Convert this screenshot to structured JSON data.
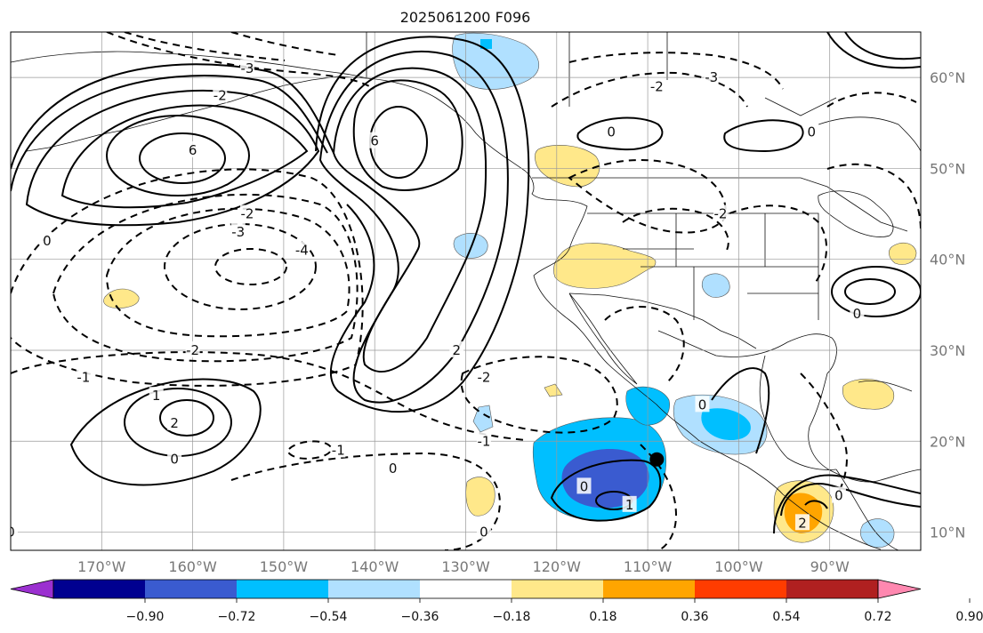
{
  "title": "2025061200 F096",
  "map": {
    "lon_range": [
      -180,
      -80
    ],
    "lat_range": [
      8,
      65
    ],
    "lon_ticks": [
      {
        "value": -170,
        "label": "170°W"
      },
      {
        "value": -160,
        "label": "160°W"
      },
      {
        "value": -150,
        "label": "150°W"
      },
      {
        "value": -140,
        "label": "140°W"
      },
      {
        "value": -130,
        "label": "130°W"
      },
      {
        "value": -120,
        "label": "120°W"
      },
      {
        "value": -110,
        "label": "110°W"
      },
      {
        "value": -100,
        "label": "100°W"
      },
      {
        "value": -90,
        "label": "90°W"
      }
    ],
    "lat_ticks": [
      {
        "value": 60,
        "label": "60°N"
      },
      {
        "value": 50,
        "label": "50°N"
      },
      {
        "value": 40,
        "label": "40°N"
      },
      {
        "value": 30,
        "label": "30°N"
      },
      {
        "value": 20,
        "label": "20°N"
      },
      {
        "value": 10,
        "label": "10°N"
      }
    ],
    "marker": {
      "lon": -109,
      "lat": 18
    }
  },
  "colorbar": {
    "colors": [
      "#9b30d0",
      "#000090",
      "#3a5bd0",
      "#00bfff",
      "#b0e0ff",
      "#ffffff",
      "#ffe88a",
      "#ffa500",
      "#ff3c00",
      "#b02020",
      "#ff88b0"
    ],
    "ticks": [
      "−0.90",
      "−0.72",
      "−0.54",
      "−0.36",
      "−0.18",
      "0.18",
      "0.36",
      "0.54",
      "0.72",
      "0.90"
    ]
  },
  "contours": [
    {
      "id": "high-155w",
      "label": "6",
      "lon": -160,
      "lat": 51,
      "levels": [
        2,
        3,
        4,
        5,
        6
      ]
    },
    {
      "id": "high-142w",
      "label": "6",
      "lon": -140,
      "lat": 52,
      "levels": [
        2,
        3,
        4,
        5,
        6
      ]
    },
    {
      "id": "low-145w",
      "label": "-4",
      "lon": -147,
      "lat": 40,
      "levels": [
        -2,
        -3,
        -4
      ]
    },
    {
      "id": "high-165w",
      "label": "2",
      "lon": -162,
      "lat": 23,
      "levels": [
        0,
        1,
        2
      ]
    },
    {
      "id": "high-112w",
      "label": "1",
      "lon": -113,
      "lat": 14,
      "levels": [
        0,
        1
      ]
    },
    {
      "id": "high-90w",
      "label": "2",
      "lon": -88,
      "lat": 36,
      "levels": [
        0,
        1,
        2
      ]
    }
  ],
  "contour_labels": [
    {
      "text": "6",
      "lon": -160,
      "lat": 52
    },
    {
      "text": "6",
      "lon": -140,
      "lat": 53
    },
    {
      "text": "-4",
      "lon": -148,
      "lat": 41
    },
    {
      "text": "-2",
      "lon": -160,
      "lat": 30
    },
    {
      "text": "-1",
      "lon": -172,
      "lat": 27
    },
    {
      "text": "1",
      "lon": -164,
      "lat": 25
    },
    {
      "text": "2",
      "lon": -162,
      "lat": 22
    },
    {
      "text": "0",
      "lon": -162,
      "lat": 18
    },
    {
      "text": "0",
      "lon": -138,
      "lat": 17
    },
    {
      "text": "-1",
      "lon": -144,
      "lat": 19
    },
    {
      "text": "-1",
      "lon": -128,
      "lat": 20
    },
    {
      "text": "-2",
      "lon": -128,
      "lat": 27
    },
    {
      "text": "-2",
      "lon": -102,
      "lat": 45
    },
    {
      "text": "0",
      "lon": -114,
      "lat": 54
    },
    {
      "text": "0",
      "lon": -92,
      "lat": 54
    },
    {
      "text": "2",
      "lon": -131,
      "lat": 30
    },
    {
      "text": "0",
      "lon": -117,
      "lat": 15
    },
    {
      "text": "1",
      "lon": -112,
      "lat": 13
    },
    {
      "text": "0",
      "lon": -128,
      "lat": 10
    },
    {
      "text": "0",
      "lon": -104,
      "lat": 24
    },
    {
      "text": "0",
      "lon": -87,
      "lat": 34
    },
    {
      "text": "0",
      "lon": -89,
      "lat": 14
    },
    {
      "text": "2",
      "lon": -93,
      "lat": 11
    },
    {
      "text": "-2",
      "lon": -157,
      "lat": 58
    },
    {
      "text": "-3",
      "lon": -154,
      "lat": 61
    },
    {
      "text": "-2",
      "lon": -109,
      "lat": 59
    },
    {
      "text": "-3",
      "lon": -103,
      "lat": 60
    },
    {
      "text": "-2",
      "lon": -154,
      "lat": 45
    },
    {
      "text": "-3",
      "lon": -155,
      "lat": 43
    },
    {
      "text": "0",
      "lon": -176,
      "lat": 42
    },
    {
      "text": "0",
      "lon": -180,
      "lat": 10
    }
  ]
}
